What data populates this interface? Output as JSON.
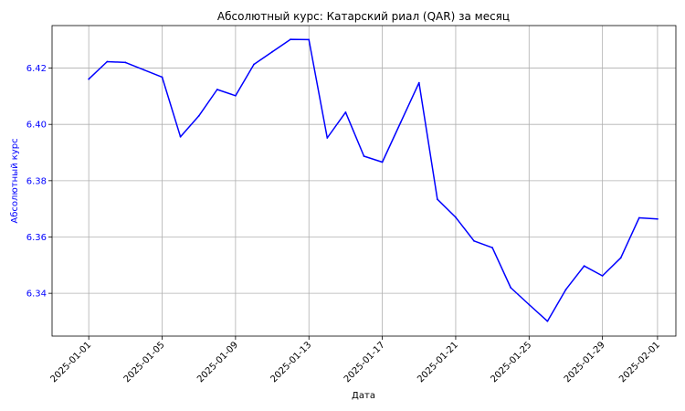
{
  "chart_data": {
    "type": "line",
    "title": "Абсолютный курс: Катарский риал (QAR) за месяц",
    "xlabel": "Дата",
    "ylabel": "Абсолютный курс",
    "grid": true,
    "colors": {
      "line": "#0000ff",
      "ylabel": "#0000ff",
      "yticks": "#0000ff",
      "grid": "#b0b0b0",
      "axes": "#000000"
    },
    "xlim": [
      "2024-12-30",
      "2025-02-02"
    ],
    "ylim": [
      6.3248,
      6.4351
    ],
    "xticks": [
      "2025-01-01",
      "2025-01-05",
      "2025-01-09",
      "2025-01-13",
      "2025-01-17",
      "2025-01-21",
      "2025-01-25",
      "2025-01-29",
      "2025-02-01"
    ],
    "yticks": [
      6.34,
      6.36,
      6.38,
      6.4,
      6.42
    ],
    "ytick_labels": [
      "6.34",
      "6.36",
      "6.38",
      "6.40",
      "6.42"
    ],
    "x": [
      "2025-01-01",
      "2025-01-02",
      "2025-01-03",
      "2025-01-04",
      "2025-01-05",
      "2025-01-06",
      "2025-01-07",
      "2025-01-08",
      "2025-01-09",
      "2025-01-10",
      "2025-01-11",
      "2025-01-12",
      "2025-01-13",
      "2025-01-14",
      "2025-01-15",
      "2025-01-16",
      "2025-01-17",
      "2025-01-18",
      "2025-01-19",
      "2025-01-20",
      "2025-01-21",
      "2025-01-22",
      "2025-01-23",
      "2025-01-24",
      "2025-01-25",
      "2025-01-26",
      "2025-01-27",
      "2025-01-28",
      "2025-01-29",
      "2025-01-30",
      "2025-01-31",
      "2025-02-01"
    ],
    "values": [
      6.4161,
      6.4223,
      6.422,
      6.4194,
      6.4168,
      6.3956,
      6.403,
      6.4124,
      6.4102,
      6.4213,
      6.4258,
      6.4302,
      6.4301,
      6.3952,
      6.4043,
      6.3887,
      6.3866,
      6.4007,
      6.4148,
      6.3734,
      6.367,
      6.3586,
      6.3562,
      6.342,
      6.336,
      6.3301,
      6.3413,
      6.3497,
      6.3462,
      6.3526,
      6.3668,
      6.3664
    ]
  }
}
